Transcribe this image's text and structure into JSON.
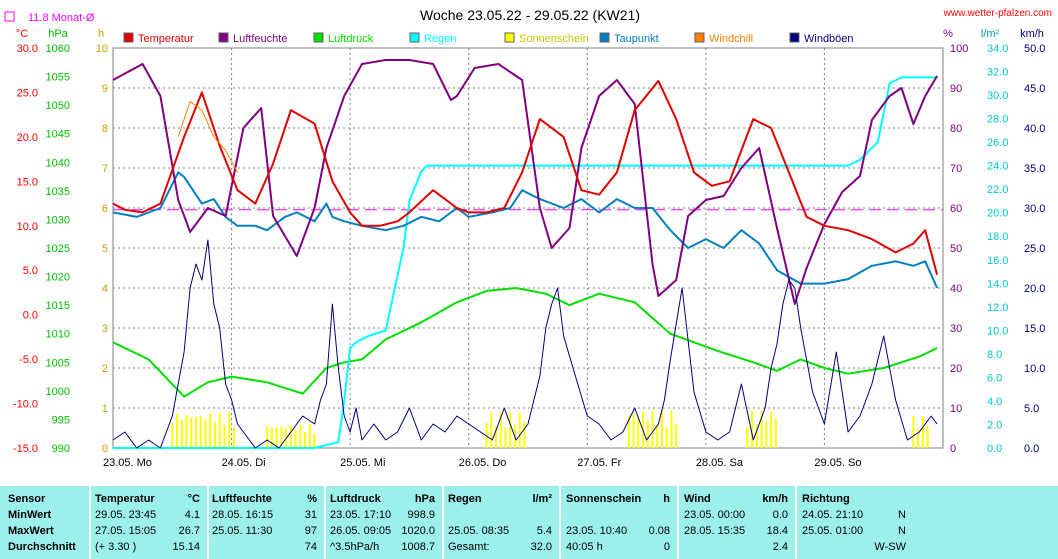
{
  "header": {
    "title": "Woche 23.05.22 - 29.05.22 (KW21)",
    "url": "www.wetter-pfalzen.com",
    "avg_label": "11.8 Monat-Ø",
    "units_left": [
      "°C",
      "hPa",
      "h"
    ],
    "units_right": [
      "%",
      "l/m²",
      "km/h"
    ]
  },
  "legend": [
    {
      "label": "Temperatur",
      "color": "#e00000"
    },
    {
      "label": "Luftfeuchte",
      "color": "#800080"
    },
    {
      "label": "Luftdruck",
      "color": "#00e000"
    },
    {
      "label": "Regen",
      "color": "#00ffff"
    },
    {
      "label": "Sonnenschein",
      "color": "#ffff00"
    },
    {
      "label": "Taupunkt",
      "color": "#0080c0"
    },
    {
      "label": "Windchill",
      "color": "#ff8000"
    },
    {
      "label": "Windböen",
      "color": "#000080"
    }
  ],
  "chart_data": {
    "type": "line",
    "x_ticks": [
      "23.05. Mo",
      "24.05. Di",
      "25.05. Mi",
      "26.05. Do",
      "27.05. Fr",
      "28.05. Sa",
      "29.05. So"
    ],
    "axes": {
      "temperature_c": {
        "ticks": [
          "30.0",
          "25.0",
          "20.0",
          "15.0",
          "10.0",
          "5.0",
          "0.0",
          "-5.0",
          "-10.0",
          "-15.0"
        ],
        "range": [
          -15,
          30
        ],
        "color": "#ff0000"
      },
      "pressure_hpa": {
        "ticks": [
          "1060",
          "1055",
          "1050",
          "1045",
          "1040",
          "1035",
          "1030",
          "1025",
          "1020",
          "1015",
          "1010",
          "1005",
          "1000",
          "995",
          "990"
        ],
        "range": [
          990,
          1060
        ],
        "color": "#00c000"
      },
      "sunshine_h": {
        "ticks": [
          "10",
          "9",
          "8",
          "7",
          "6",
          "5",
          "4",
          "3",
          "2",
          "1",
          "0"
        ],
        "range": [
          0,
          10
        ],
        "color": "#c8a000"
      },
      "humidity_pct": {
        "ticks": [
          "100",
          "90",
          "80",
          "70",
          "60",
          "50",
          "40",
          "30",
          "20",
          "10",
          "0"
        ],
        "range": [
          0,
          100
        ],
        "color": "#800080"
      },
      "rain_lm2": {
        "ticks": [
          "34.0",
          "32.0",
          "30.0",
          "28.0",
          "26.0",
          "24.0",
          "22.0",
          "20.0",
          "18.0",
          "16.0",
          "14.0",
          "12.0",
          "10.0",
          "8.0",
          "6.0",
          "4.0",
          "2.0",
          "0.0"
        ],
        "range": [
          0,
          34
        ],
        "color": "#00c8c8"
      },
      "wind_kmh": {
        "ticks": [
          "50.0",
          "45.0",
          "40.0",
          "35.0",
          "30.0",
          "25.0",
          "20.0",
          "15.0",
          "10.0",
          "5.0",
          "0.0"
        ],
        "range": [
          0,
          50
        ],
        "color": "#000080"
      }
    },
    "monthly_avg_temp": 11.8,
    "series": [
      {
        "name": "Temperatur",
        "axis": "temperature_c",
        "color": "#e00000",
        "width": 2,
        "x": [
          0,
          0.1,
          0.25,
          0.4,
          0.6,
          0.75,
          0.9,
          1.05,
          1.2,
          1.35,
          1.5,
          1.7,
          1.85,
          2.0,
          2.1,
          2.25,
          2.4,
          2.5,
          2.7,
          2.9,
          3.0,
          3.15,
          3.3,
          3.45,
          3.6,
          3.8,
          3.95,
          4.1,
          4.25,
          4.4,
          4.6,
          4.75,
          4.9,
          5.05,
          5.2,
          5.4,
          5.55,
          5.7,
          5.85,
          6.0,
          6.2,
          6.4,
          6.6,
          6.75,
          6.85,
          6.95
        ],
        "y": [
          12.5,
          11.8,
          11.5,
          12.5,
          20.0,
          25.0,
          19.0,
          14.0,
          12.5,
          17.0,
          23.0,
          21.5,
          15.0,
          11.5,
          10.0,
          10.0,
          10.5,
          11.5,
          14.0,
          12.0,
          11.5,
          11.5,
          12.0,
          16.0,
          22.0,
          20.0,
          14.0,
          13.5,
          16.0,
          23.0,
          26.3,
          22.0,
          16.0,
          14.5,
          15.0,
          22.0,
          21.0,
          16.0,
          11.0,
          10.0,
          9.5,
          8.5,
          7.0,
          8.0,
          9.5,
          4.5
        ]
      },
      {
        "name": "Luftfeuchte",
        "axis": "humidity_pct",
        "color": "#800080",
        "width": 2,
        "x": [
          0,
          0.25,
          0.4,
          0.55,
          0.65,
          0.8,
          0.95,
          1.1,
          1.25,
          1.35,
          1.55,
          1.7,
          1.8,
          1.95,
          2.1,
          2.3,
          2.5,
          2.7,
          2.85,
          2.9,
          3.05,
          3.25,
          3.45,
          3.6,
          3.7,
          3.85,
          3.95,
          4.1,
          4.25,
          4.4,
          4.55,
          4.6,
          4.75,
          4.85,
          5.0,
          5.15,
          5.3,
          5.45,
          5.6,
          5.75,
          5.85,
          6.0,
          6.15,
          6.3,
          6.4,
          6.55,
          6.65,
          6.75,
          6.85,
          6.95
        ],
        "y": [
          92,
          96,
          88,
          62,
          54,
          60,
          58,
          80,
          85,
          58,
          48,
          60,
          75,
          88,
          96,
          97,
          97,
          96,
          87,
          88,
          95,
          96,
          92,
          60,
          50,
          55,
          75,
          88,
          92,
          86,
          46,
          38,
          42,
          58,
          62,
          63,
          70,
          75,
          55,
          36,
          45,
          56,
          64,
          68,
          82,
          88,
          90,
          81,
          88,
          93
        ]
      },
      {
        "name": "Luftdruck",
        "axis": "pressure_hpa",
        "color": "#00e000",
        "width": 2,
        "x": [
          0,
          0.3,
          0.6,
          0.8,
          1.0,
          1.3,
          1.6,
          1.8,
          1.95,
          2.1,
          2.3,
          2.6,
          2.9,
          3.15,
          3.4,
          3.65,
          3.85,
          4.1,
          4.4,
          4.7,
          4.9,
          5.1,
          5.4,
          5.6,
          5.8,
          6.0,
          6.2,
          6.5,
          6.8,
          6.95
        ],
        "y": [
          1008.5,
          1005.5,
          999.0,
          1001.5,
          1002.5,
          1001.5,
          999.5,
          1004.0,
          1005.0,
          1005.5,
          1009.0,
          1012.0,
          1015.5,
          1017.5,
          1018.0,
          1017.0,
          1015.0,
          1017.0,
          1015.5,
          1010.0,
          1008.5,
          1007.0,
          1005.0,
          1003.5,
          1005.5,
          1004.0,
          1003.0,
          1004.0,
          1006.0,
          1007.5
        ]
      },
      {
        "name": "Regen",
        "axis": "rain_lm2",
        "color": "#00ffff",
        "width": 2,
        "x": [
          0,
          1.7,
          1.9,
          1.95,
          2.0,
          2.05,
          2.15,
          2.3,
          2.45,
          2.5,
          2.6,
          2.65,
          3.0,
          4.0,
          5.0,
          6.0,
          6.2,
          6.3,
          6.45,
          6.55,
          6.65,
          6.95
        ],
        "y": [
          0,
          0,
          0.5,
          4.0,
          8.5,
          9.0,
          9.5,
          10.0,
          17.0,
          21.0,
          23.5,
          24.0,
          24.0,
          24.0,
          24.0,
          24.0,
          24.0,
          24.5,
          26.0,
          31.0,
          31.5,
          31.5
        ]
      },
      {
        "name": "Taupunkt",
        "axis": "temperature_c",
        "color": "#0080c0",
        "width": 2,
        "x": [
          0,
          0.2,
          0.4,
          0.55,
          0.6,
          0.75,
          0.85,
          0.95,
          1.05,
          1.2,
          1.3,
          1.45,
          1.55,
          1.7,
          1.8,
          1.85,
          1.95,
          2.1,
          2.3,
          2.45,
          2.6,
          2.75,
          2.9,
          3.0,
          3.2,
          3.35,
          3.45,
          3.6,
          3.8,
          3.95,
          4.1,
          4.25,
          4.4,
          4.55,
          4.7,
          4.85,
          5.0,
          5.15,
          5.3,
          5.45,
          5.6,
          5.8,
          6.0,
          6.2,
          6.4,
          6.6,
          6.75,
          6.85,
          6.95
        ],
        "y": [
          11.5,
          11.0,
          12.0,
          16.0,
          15.5,
          12.5,
          13.0,
          11.0,
          10.0,
          10.0,
          9.5,
          11.0,
          11.5,
          10.5,
          12.5,
          11.0,
          10.5,
          10.0,
          9.5,
          10.0,
          11.0,
          10.5,
          12.0,
          11.0,
          11.5,
          12.0,
          14.0,
          13.0,
          12.0,
          13.0,
          11.5,
          13.0,
          12.0,
          12.0,
          9.5,
          7.5,
          8.5,
          7.5,
          9.5,
          8.0,
          5.0,
          3.5,
          3.5,
          4.0,
          5.5,
          6.0,
          5.5,
          6.0,
          3.0
        ]
      },
      {
        "name": "Windchill",
        "axis": "temperature_c",
        "color": "#ff8000",
        "width": 1,
        "x": [
          0.55,
          0.65,
          0.75,
          0.85,
          0.95,
          1.05
        ],
        "y": [
          20.0,
          24.0,
          23.0,
          20.0,
          18.5,
          16.0
        ]
      },
      {
        "name": "Windböen",
        "axis": "wind_kmh",
        "color": "#000080",
        "width": 1,
        "x": [
          0,
          0.1,
          0.2,
          0.3,
          0.4,
          0.5,
          0.55,
          0.6,
          0.65,
          0.7,
          0.75,
          0.8,
          0.85,
          0.9,
          0.95,
          1.0,
          1.05,
          1.1,
          1.2,
          1.3,
          1.4,
          1.5,
          1.6,
          1.7,
          1.75,
          1.8,
          1.85,
          1.9,
          1.95,
          2.0,
          2.05,
          2.1,
          2.2,
          2.3,
          2.4,
          2.5,
          2.6,
          2.7,
          2.8,
          2.9,
          3.0,
          3.1,
          3.2,
          3.3,
          3.4,
          3.5,
          3.55,
          3.6,
          3.65,
          3.7,
          3.75,
          3.8,
          3.9,
          4.0,
          4.1,
          4.2,
          4.3,
          4.4,
          4.5,
          4.6,
          4.65,
          4.7,
          4.8,
          4.9,
          5.0,
          5.1,
          5.2,
          5.3,
          5.4,
          5.5,
          5.55,
          5.6,
          5.65,
          5.7,
          5.75,
          5.8,
          5.9,
          6.0,
          6.1,
          6.2,
          6.3,
          6.4,
          6.5,
          6.6,
          6.7,
          6.8,
          6.9,
          6.95
        ],
        "y": [
          1,
          2,
          0,
          1,
          0,
          4,
          8,
          12,
          20,
          23,
          21,
          26,
          18,
          15,
          8,
          6,
          3,
          2,
          0,
          1,
          0,
          2,
          4,
          3,
          6,
          8,
          18,
          10,
          4,
          2,
          5,
          1,
          3,
          1,
          2,
          5,
          1,
          3,
          2,
          4,
          3,
          2,
          1,
          5,
          1,
          3,
          6,
          9,
          15,
          18,
          20,
          14,
          9,
          4,
          3,
          1,
          2,
          5,
          1,
          3,
          6,
          11,
          20,
          7,
          2,
          1,
          2,
          8,
          1,
          5,
          10,
          13,
          18,
          21,
          20,
          15,
          7,
          3,
          12,
          2,
          4,
          8,
          14,
          6,
          1,
          2,
          4,
          3
        ]
      }
    ],
    "sunshine_bars": {
      "axis": "sunshine_h",
      "color": "#ffff00",
      "segments": [
        [
          0.5,
          1.05,
          0.9
        ],
        [
          1.3,
          1.7,
          0.6
        ],
        [
          3.15,
          3.5,
          0.9
        ],
        [
          4.35,
          4.75,
          0.95
        ],
        [
          5.35,
          5.6,
          0.95
        ],
        [
          6.75,
          6.9,
          0.8
        ]
      ]
    }
  },
  "table": {
    "headers": [
      {
        "label": "Sensor"
      },
      {
        "label": "Temperatur",
        "unit": "°C"
      },
      {
        "label": "Luftfeuchte",
        "unit": "%"
      },
      {
        "label": "Luftdruck",
        "unit": "hPa"
      },
      {
        "label": "Regen",
        "unit": "l/m²"
      },
      {
        "label": "Sonnenschein",
        "unit": "h"
      },
      {
        "label": "Wind",
        "unit": "km/h"
      },
      {
        "label": "Richtung"
      }
    ],
    "rows": [
      {
        "label": "MinWert",
        "cells": [
          [
            "29.05.  23:45",
            "4.1"
          ],
          [
            "28.05.  16:15",
            "31"
          ],
          [
            "23.05.  17:10",
            "998.9"
          ],
          [
            "",
            ""
          ],
          [
            "",
            ""
          ],
          [
            "23.05.  00:00",
            "0.0"
          ],
          [
            "24.05.  21:10",
            "N"
          ]
        ]
      },
      {
        "label": "MaxWert",
        "cells": [
          [
            "27.05.  15:05",
            "26.7"
          ],
          [
            "25.05.  11:30",
            "97"
          ],
          [
            "26.05.  09:05",
            "1020.0"
          ],
          [
            "25.05.  08:35",
            "5.4"
          ],
          [
            "23.05.  10:40",
            "0.08"
          ],
          [
            "28.05.  15:35",
            "18.4"
          ],
          [
            "25.05.  01:00",
            "N"
          ]
        ]
      },
      {
        "label": "Durchschnitt",
        "cells": [
          [
            "(+ 3.30 )",
            "15.14"
          ],
          [
            "",
            "74"
          ],
          [
            "^3.5hPa/h",
            "1008.7"
          ],
          [
            "Gesamt:",
            "32.0"
          ],
          [
            "40:05 h",
            "0"
          ],
          [
            "",
            "2.4"
          ],
          [
            "",
            "W-SW"
          ]
        ]
      }
    ]
  }
}
